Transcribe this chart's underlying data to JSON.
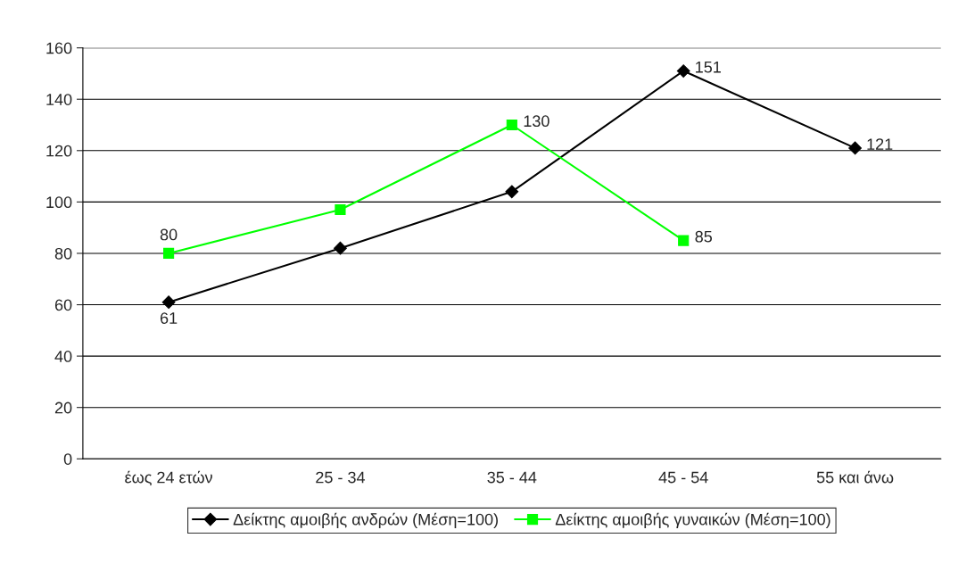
{
  "chart_data": {
    "type": "line",
    "categories": [
      "έως 24 ετών",
      "25 - 34",
      "35 - 44",
      "45 - 54",
      "55 και άνω"
    ],
    "series": [
      {
        "name": "Δείκτης αμοιβής ανδρών (Μέση=100)",
        "color": "#000000",
        "marker": "diamond",
        "values": [
          61,
          82,
          104,
          151,
          121
        ],
        "value_labels": [
          "61",
          null,
          null,
          "151",
          "121"
        ]
      },
      {
        "name": "Δείκτης αμοιβής γυναικών (Μέση=100)",
        "color": "#00ff00",
        "marker": "square",
        "values": [
          80,
          97,
          130,
          85,
          null
        ],
        "value_labels": [
          "80",
          null,
          "130",
          "85",
          null
        ]
      }
    ],
    "ylim": [
      0,
      160
    ],
    "yticks": [
      0,
      20,
      40,
      60,
      80,
      100,
      120,
      140,
      160
    ],
    "grid": "y",
    "legend": "bottom",
    "line_style": "solid"
  }
}
